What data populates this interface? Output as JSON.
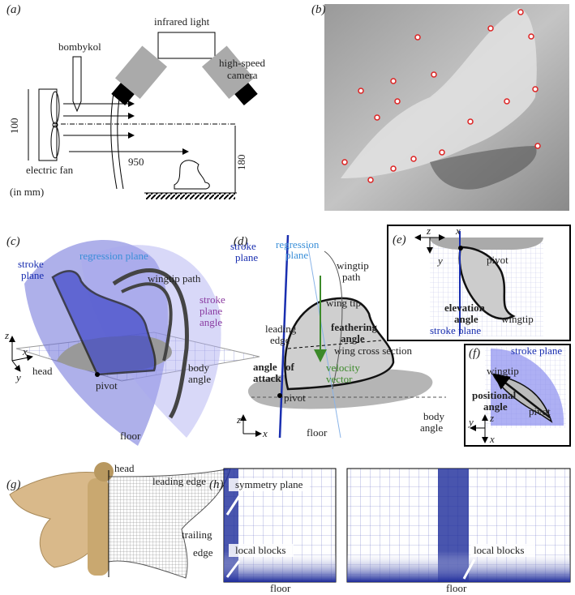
{
  "panels": {
    "a": {
      "label": "(a)",
      "infrared_light": "infrared light",
      "bombykol": "bombykol",
      "camera": [
        "high-speed",
        "camera"
      ],
      "dim_fan": 100,
      "dim_distance": 950,
      "dim_height": 180,
      "fan": "electric fan",
      "units": "(in mm)"
    },
    "b": {
      "label": "(b)"
    },
    "c": {
      "label": "(c)",
      "stroke_plane": [
        "stroke",
        "plane"
      ],
      "regression_plane": "regression plane",
      "wingtip_path": "wingtip path",
      "stroke_plane_angle": [
        "stroke",
        "plane",
        "angle"
      ],
      "head": "head",
      "pivot": "pivot",
      "body_angle": [
        "body",
        "angle"
      ],
      "floor": "floor",
      "axes": [
        "z",
        "x",
        "y"
      ]
    },
    "d": {
      "label": "(d)",
      "stroke_plane": [
        "stroke",
        "plane"
      ],
      "regression_plane": [
        "regression",
        "plane"
      ],
      "wingtip_path": [
        "wingtip",
        "path"
      ],
      "wing_tip": "wing tip",
      "leading_edge": [
        "leading",
        "edge"
      ],
      "feathering_angle": [
        "feathering",
        "angle"
      ],
      "wing_cross_section": "wing cross section",
      "angle_of_attack": [
        "angle",
        "of",
        "attack"
      ],
      "velocity_vector": [
        "velocity",
        "vector"
      ],
      "pivot": "pivot",
      "body_angle": [
        "body",
        "angle"
      ],
      "floor": "floor",
      "axes": [
        "z",
        "x"
      ]
    },
    "e": {
      "label": "(e)",
      "axes": [
        "z",
        "x",
        "y"
      ],
      "pivot": "pivot",
      "elevation_angle": [
        "elevation",
        "angle"
      ],
      "wingtip": "wingtip",
      "stroke_plane": "stroke plane"
    },
    "f": {
      "label": "(f)",
      "stroke_plane": "stroke plane",
      "wingtip": "wingtip",
      "positional_angle": [
        "positional",
        "angle"
      ],
      "pivot": "pivot",
      "axes": [
        "z",
        "y",
        "x"
      ]
    },
    "g": {
      "label": "(g)",
      "head": "head",
      "leading_edge": "leading edge",
      "trailing_edge": [
        "trailing",
        "edge"
      ]
    },
    "h": {
      "label": "(h)",
      "symmetry_plane": "symmetry plane",
      "local_blocks_left": "local blocks",
      "floor_left": "floor",
      "local_blocks_right": "local blocks",
      "floor_right": "floor"
    }
  }
}
